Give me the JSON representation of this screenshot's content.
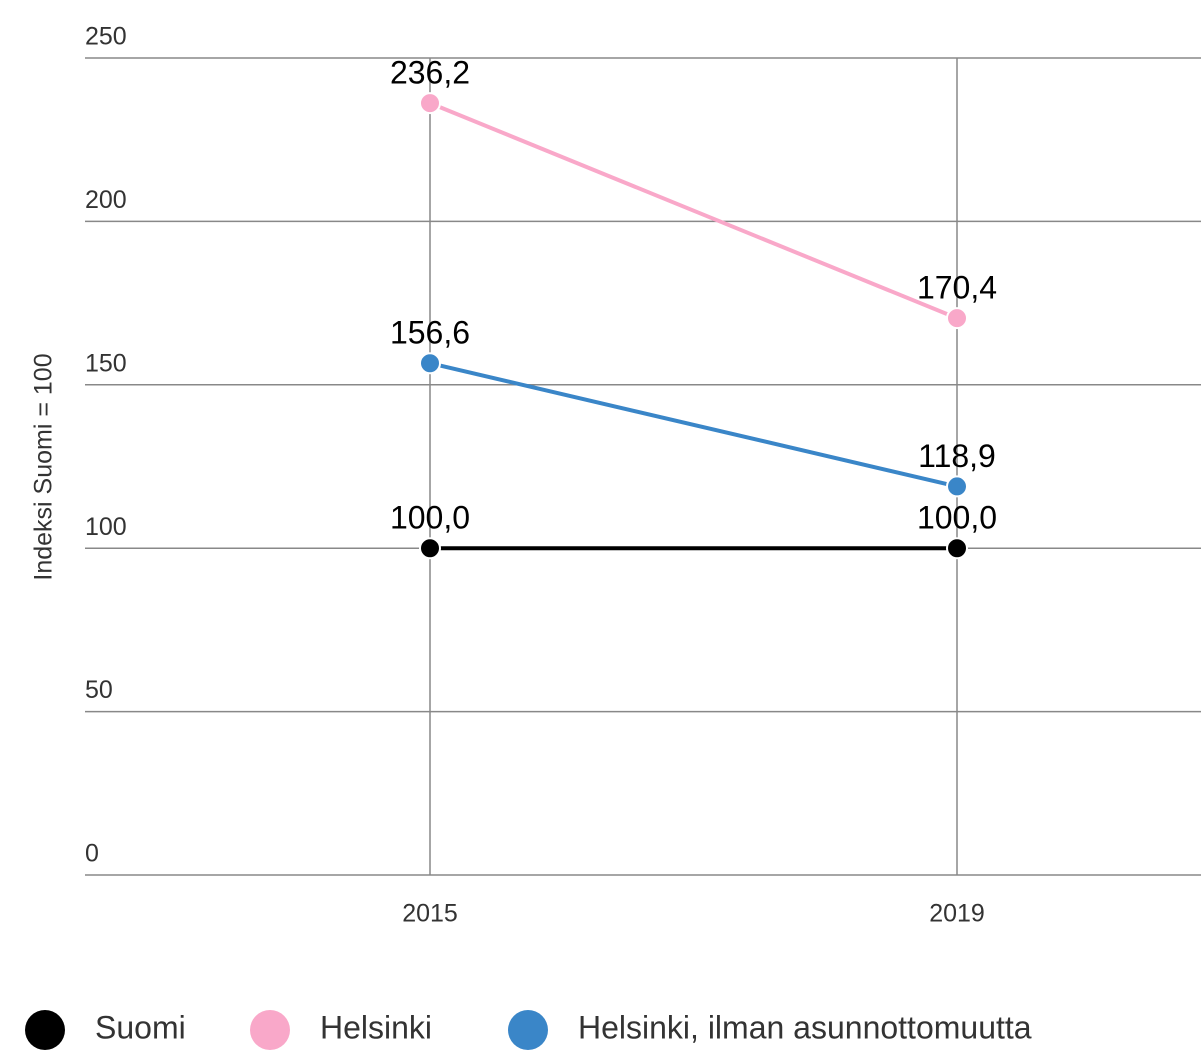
{
  "chart_data": {
    "type": "line",
    "y_label": "Indeksi Suomi = 100",
    "categories": [
      "2015",
      "2019"
    ],
    "ylim": [
      0,
      250
    ],
    "yticks": [
      0,
      50,
      100,
      150,
      200,
      250
    ],
    "grid": true,
    "series": [
      {
        "name": "Suomi",
        "color": "#000000",
        "values": [
          100,
          100
        ],
        "value_labels": [
          "100,0",
          "100,0"
        ]
      },
      {
        "name": "Helsinki",
        "color": "#f9a8c9",
        "values": [
          236.2,
          170.4
        ],
        "value_labels": [
          "236,2",
          "170,4"
        ]
      },
      {
        "name": "Helsinki, ilman asunnottomuutta",
        "color": "#3a86c8",
        "values": [
          156.6,
          118.9
        ],
        "value_labels": [
          "156,6",
          "118,9"
        ]
      }
    ]
  }
}
